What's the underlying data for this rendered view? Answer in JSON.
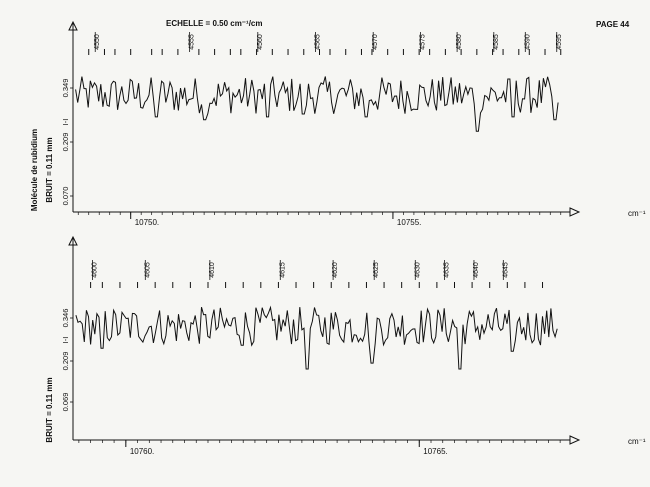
{
  "header": {
    "scale": "ECHELLE = 0.50 cm⁻¹/cm",
    "page": "PAGE 44"
  },
  "colors": {
    "ink": "#111111",
    "paper": "#f6f6f3"
  },
  "chart_data": [
    {
      "type": "line",
      "panel": "top",
      "ylabel": "Molécule de rubidium",
      "ylabel2": "BRUIT = 0.11 mm",
      "yticks": [
        "0.070",
        "0.209",
        "0.349"
      ],
      "ymarker": "I-I",
      "xunit": "cm⁻¹",
      "xlim": [
        10748.9,
        10758.3
      ],
      "xticks": [
        10750,
        10755
      ],
      "xtick_labels": [
        "10750.",
        "10755."
      ],
      "line_numbers": [
        "4550",
        "4555",
        "4560",
        "4565",
        "4570",
        "4575",
        "4580",
        "4585",
        "4590",
        "4595"
      ],
      "line_numbers_x": [
        10749.4,
        10751.2,
        10752.5,
        10753.6,
        10754.7,
        10755.6,
        10756.3,
        10757.0,
        10757.6,
        10758.2
      ],
      "tick_marks_x": [
        10749.2,
        10749.5,
        10749.7,
        10750.0,
        10750.4,
        10750.6,
        10750.9,
        10751.3,
        10751.6,
        10751.9,
        10752.1,
        10752.4,
        10752.7,
        10753.0,
        10753.3,
        10753.6,
        10753.8,
        10754.1,
        10754.4,
        10754.6,
        10754.9,
        10755.2,
        10755.5,
        10755.7,
        10756.0,
        10756.3,
        10756.6,
        10756.9,
        10757.1,
        10757.4,
        10757.6,
        10757.9,
        10758.2
      ],
      "y_min": 0.09,
      "y_max": 0.36,
      "dips_x": [
        10750.5,
        10751.4,
        10752.6,
        10753.3,
        10754.5,
        10756.6,
        10757.3,
        10758.1
      ],
      "dips_y": [
        0.17,
        0.16,
        0.17,
        0.18,
        0.17,
        0.12,
        0.17,
        0.16
      ]
    },
    {
      "type": "line",
      "panel": "bottom",
      "ylabel": "BRUIT = 0.11 mm",
      "yticks": [
        "0.069",
        "0.209",
        "0.346"
      ],
      "ymarker": "I-I",
      "xunit": "cm⁻¹",
      "xlim": [
        10759.1,
        10767.5
      ],
      "xticks": [
        10760,
        10765
      ],
      "xtick_labels": [
        "10760.",
        "10765."
      ],
      "line_numbers": [
        "4600",
        "4605",
        "4610",
        "4615",
        "4620",
        "4625",
        "4630",
        "4635",
        "4640",
        "4645"
      ],
      "line_numbers_x": [
        10759.5,
        10760.4,
        10761.5,
        10762.7,
        10763.6,
        10764.3,
        10765.0,
        10765.5,
        10766.0,
        10766.5
      ],
      "tick_marks_x": [
        10759.4,
        10759.6,
        10759.9,
        10760.2,
        10760.5,
        10760.8,
        10761.1,
        10761.4,
        10761.7,
        10762.0,
        10762.3,
        10762.6,
        10762.9,
        10763.2,
        10763.5,
        10763.8,
        10764.1,
        10764.4,
        10764.7,
        10765.0,
        10765.3,
        10765.6,
        10765.9,
        10766.2,
        10766.5,
        10766.8,
        10767.1
      ],
      "y_min": 0.09,
      "y_max": 0.36,
      "dips_x": [
        10759.6,
        10762.0,
        10763.1,
        10764.2,
        10765.7,
        10766.6
      ],
      "dips_y": [
        0.17,
        0.18,
        0.1,
        0.12,
        0.1,
        0.16
      ]
    }
  ]
}
